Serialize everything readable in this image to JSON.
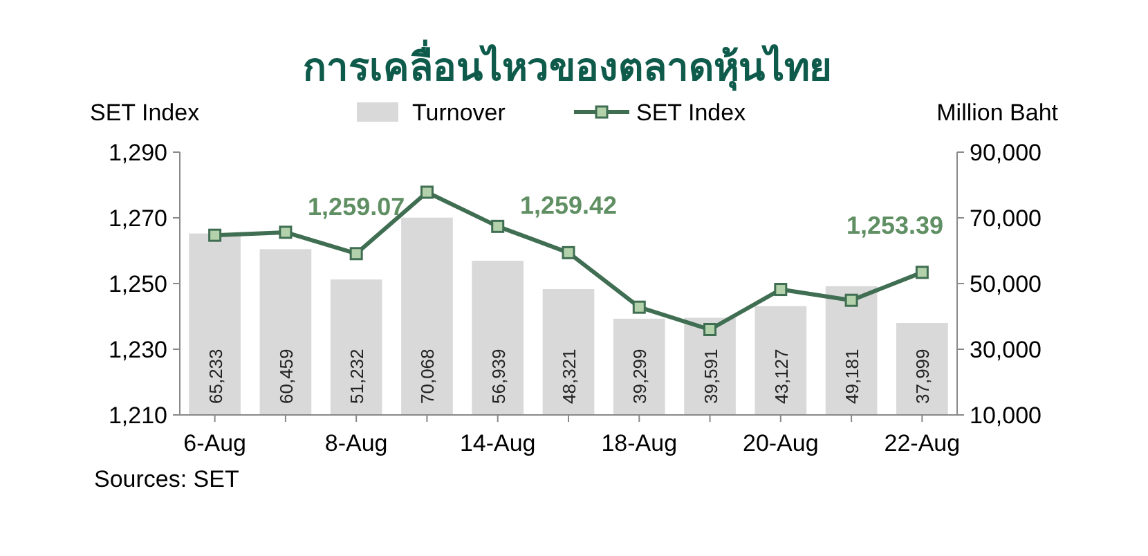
{
  "chart_data": {
    "type": "bar",
    "title": "การเคลื่อนไหวของตลาดหุ้นไทย",
    "ylabel": "SET Index",
    "y2label": "Million Baht",
    "categories": [
      "6-Aug",
      null,
      "8-Aug",
      null,
      "14-Aug",
      null,
      "18-Aug",
      null,
      "20-Aug",
      null,
      "22-Aug"
    ],
    "series": [
      {
        "name": "Turnover",
        "axis": "y2",
        "color": "#d9d9d9",
        "values": [
          65233,
          60459,
          51232,
          70068,
          56939,
          48321,
          39299,
          39591,
          43127,
          49181,
          37999
        ],
        "value_labels": [
          "65,233",
          "60,459",
          "51,232",
          "70,068",
          "56,939",
          "48,321",
          "39,299",
          "39,591",
          "43,127",
          "49,181",
          "37,999"
        ]
      },
      {
        "name": "SET Index",
        "type": "line",
        "color": "#3f6e52",
        "marker": "square",
        "values": [
          1264.7,
          1265.6,
          1259.1,
          1277.8,
          1267.4,
          1259.4,
          1242.8,
          1236,
          1248.2,
          1244.9,
          1253.4
        ]
      }
    ],
    "ylim": [
      1210,
      1290
    ],
    "yticks": [
      {
        "value": 1210,
        "label": "1,210"
      },
      {
        "value": 1230,
        "label": "1,230"
      },
      {
        "value": 1250,
        "label": "1,250"
      },
      {
        "value": 1270,
        "label": "1,270"
      },
      {
        "value": 1290,
        "label": "1,290"
      }
    ],
    "y2lim": [
      10000,
      90000
    ],
    "y2ticks": [
      {
        "value": 10000,
        "label": "10,000"
      },
      {
        "value": 30000,
        "label": "30,000"
      },
      {
        "value": 50000,
        "label": "50,000"
      },
      {
        "value": 70000,
        "label": "70,000"
      },
      {
        "value": 90000,
        "label": "90,000"
      }
    ],
    "legend": "top",
    "grid": false,
    "annotations": [
      {
        "text": "1,259.07",
        "x": "8-Aug",
        "y": 1259.07
      },
      {
        "text": "1,259.42",
        "y": 1259.42
      },
      {
        "text": "1,253.39",
        "x": "22-Aug",
        "y": 1253.39
      },
      "Sources: SET"
    ]
  }
}
